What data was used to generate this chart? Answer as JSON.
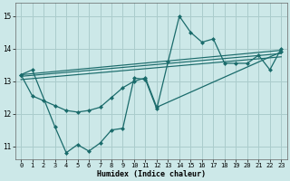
{
  "xlabel": "Humidex (Indice chaleur)",
  "xlim": [
    -0.5,
    23.5
  ],
  "ylim": [
    10.6,
    15.4
  ],
  "yticks": [
    11,
    12,
    13,
    14,
    15
  ],
  "xticks": [
    0,
    1,
    2,
    3,
    4,
    5,
    6,
    7,
    8,
    9,
    10,
    11,
    12,
    13,
    14,
    15,
    16,
    17,
    18,
    19,
    20,
    21,
    22,
    23
  ],
  "background_color": "#cce8e8",
  "grid_color": "#aacccc",
  "line_color": "#1a6b6b",
  "line1": {
    "x": [
      0,
      1,
      3,
      4,
      5,
      6,
      7,
      8,
      9,
      10,
      11,
      12,
      13,
      14,
      15,
      16,
      17,
      18,
      19,
      20,
      21,
      22,
      23
    ],
    "y": [
      13.2,
      13.35,
      11.6,
      10.8,
      11.05,
      10.85,
      11.1,
      11.5,
      11.55,
      13.1,
      13.05,
      12.15,
      13.6,
      15.0,
      14.5,
      14.2,
      14.3,
      13.55,
      13.55,
      13.55,
      13.8,
      13.35,
      14.0
    ]
  },
  "line2": {
    "x": [
      0,
      1,
      2,
      3,
      4,
      5,
      6,
      7,
      8,
      9,
      10,
      11,
      12,
      23
    ],
    "y": [
      13.2,
      12.55,
      12.4,
      12.25,
      12.1,
      12.05,
      12.1,
      12.2,
      12.5,
      12.8,
      13.0,
      13.1,
      12.2,
      13.9
    ]
  },
  "trend1": {
    "x": [
      0,
      23
    ],
    "y": [
      13.05,
      13.75
    ]
  },
  "trend2": {
    "x": [
      0,
      23
    ],
    "y": [
      13.15,
      13.85
    ]
  },
  "trend3": {
    "x": [
      0,
      23
    ],
    "y": [
      13.2,
      13.95
    ]
  }
}
